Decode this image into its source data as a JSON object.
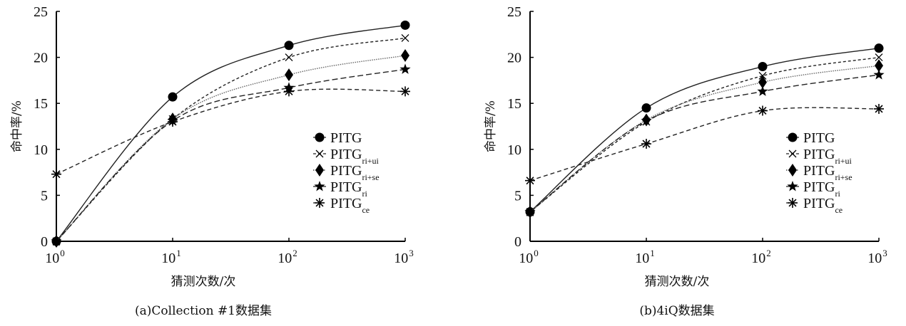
{
  "chart_data": [
    {
      "type": "line",
      "caption": "(a)Collection #1数据集",
      "xlabel": "猜测次数/次",
      "ylabel": "命中率/%",
      "xscale": "log",
      "x": [
        1,
        10,
        100,
        1000
      ],
      "xtick_base": "10",
      "xtick_exponents": [
        "0",
        "1",
        "2",
        "3"
      ],
      "yticks": [
        "0",
        "5",
        "10",
        "15",
        "20",
        "25"
      ],
      "ylim": [
        0,
        25
      ],
      "legend_position": "right",
      "series": [
        {
          "name": "PITG",
          "sub": "",
          "marker": "circle",
          "style": "solid",
          "values": [
            0,
            15.7,
            21.3,
            23.5
          ]
        },
        {
          "name": "PITG",
          "sub": "ri+ui",
          "marker": "x",
          "style": "shortdash",
          "values": [
            0,
            13.3,
            20.0,
            22.1
          ]
        },
        {
          "name": "PITG",
          "sub": "ri+se",
          "marker": "diamond",
          "style": "dotted",
          "values": [
            0,
            13.3,
            18.1,
            20.2
          ]
        },
        {
          "name": "PITG",
          "sub": "ri",
          "marker": "star",
          "style": "longdash",
          "values": [
            0,
            13.1,
            16.7,
            18.7
          ]
        },
        {
          "name": "PITG",
          "sub": "ce",
          "marker": "asterisk",
          "style": "dash",
          "values": [
            7.3,
            13.0,
            16.3,
            16.3
          ]
        }
      ]
    },
    {
      "type": "line",
      "caption": "(b)4iQ数据集",
      "xlabel": "猜测次数/次",
      "ylabel": "命中率/%",
      "xscale": "log",
      "x": [
        1,
        10,
        100,
        1000
      ],
      "xtick_base": "10",
      "xtick_exponents": [
        "0",
        "1",
        "2",
        "3"
      ],
      "yticks": [
        "0",
        "5",
        "10",
        "15",
        "20",
        "25"
      ],
      "ylim": [
        0,
        25
      ],
      "legend_position": "right",
      "series": [
        {
          "name": "PITG",
          "sub": "",
          "marker": "circle",
          "style": "solid",
          "values": [
            3.2,
            14.5,
            19.0,
            21.0
          ]
        },
        {
          "name": "PITG",
          "sub": "ri+ui",
          "marker": "x",
          "style": "shortdash",
          "values": [
            3.2,
            13.0,
            18.0,
            20.0
          ]
        },
        {
          "name": "PITG",
          "sub": "ri+se",
          "marker": "diamond",
          "style": "dotted",
          "values": [
            3.2,
            13.2,
            17.3,
            19.1
          ]
        },
        {
          "name": "PITG",
          "sub": "ri",
          "marker": "star",
          "style": "longdash",
          "values": [
            3.2,
            13.1,
            16.3,
            18.1
          ]
        },
        {
          "name": "PITG",
          "sub": "ce",
          "marker": "asterisk",
          "style": "dash",
          "values": [
            6.6,
            10.6,
            14.2,
            14.4
          ]
        }
      ]
    }
  ]
}
